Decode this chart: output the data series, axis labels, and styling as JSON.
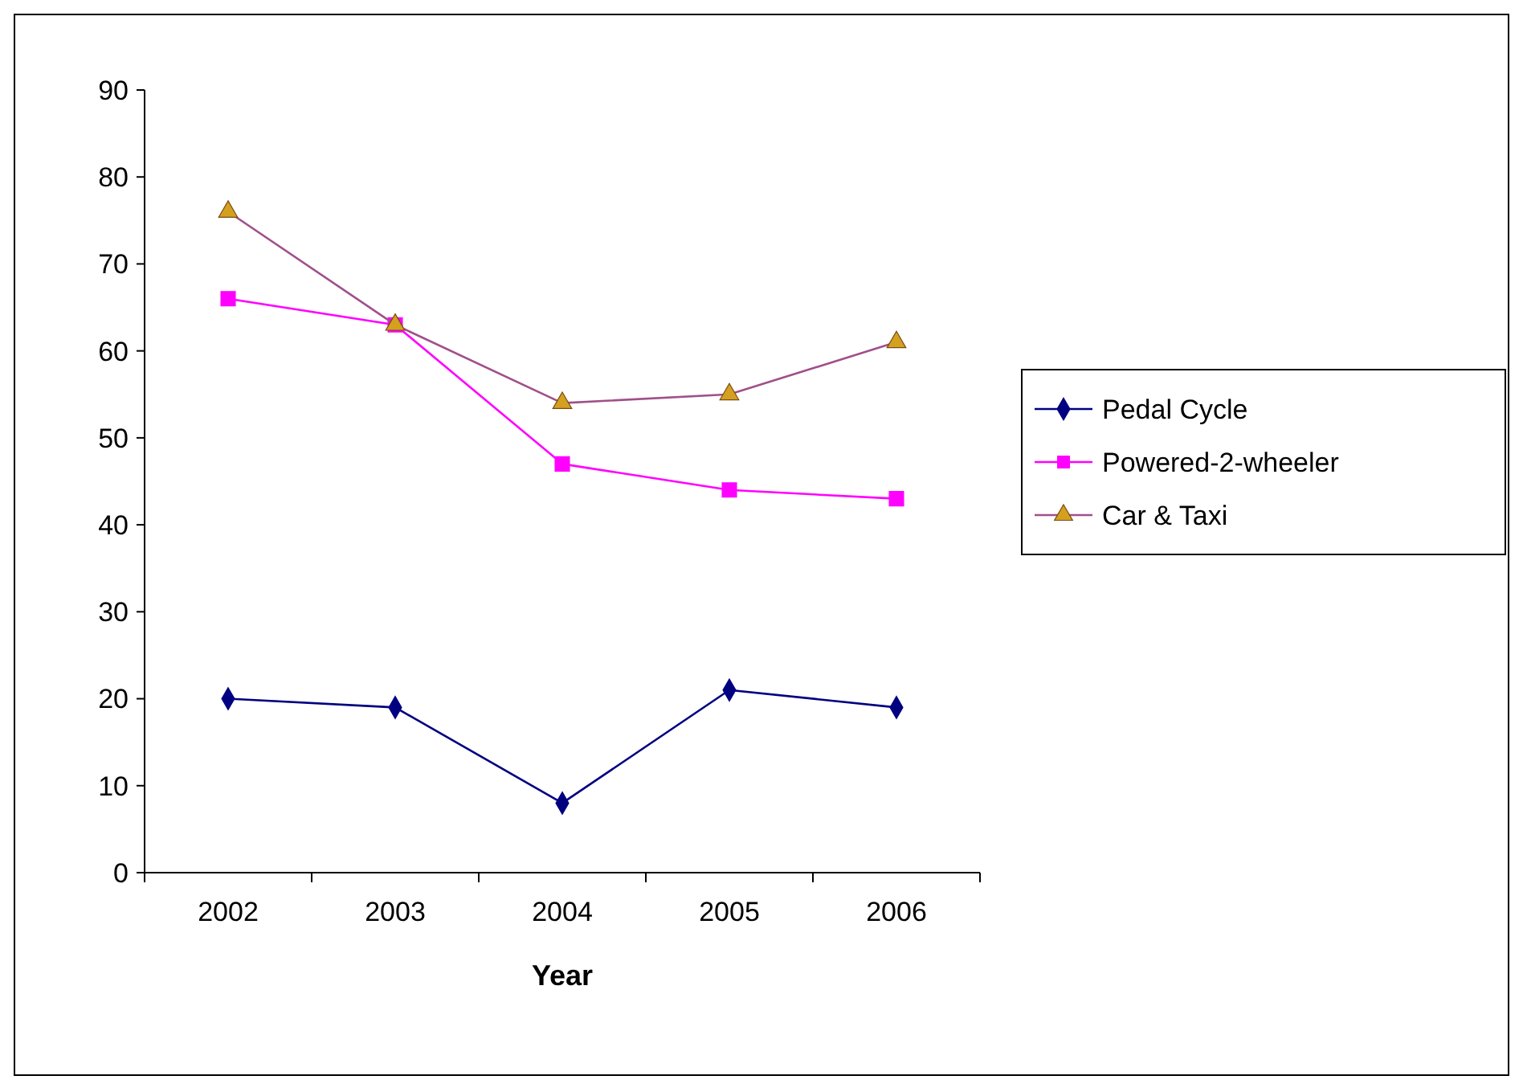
{
  "chart_data": {
    "type": "line",
    "xlabel": "Year",
    "categories": [
      "2002",
      "2003",
      "2004",
      "2005",
      "2006"
    ],
    "series": [
      {
        "name": "Pedal Cycle",
        "color": "#000080",
        "marker": "diamond",
        "values": [
          20,
          19,
          8,
          21,
          19
        ]
      },
      {
        "name": "Powered-2-wheeler",
        "color": "#ff00ff",
        "marker": "square",
        "values": [
          66,
          63,
          47,
          44,
          43
        ]
      },
      {
        "name": "Car & Taxi",
        "color": "#a0508a",
        "marker": "triangle",
        "values": [
          76,
          63,
          54,
          55,
          61
        ]
      }
    ],
    "ylim": [
      0,
      90
    ],
    "yticks": [
      0,
      10,
      20,
      30,
      40,
      50,
      60,
      70,
      80,
      90
    ],
    "grid": false,
    "legend": "right"
  }
}
